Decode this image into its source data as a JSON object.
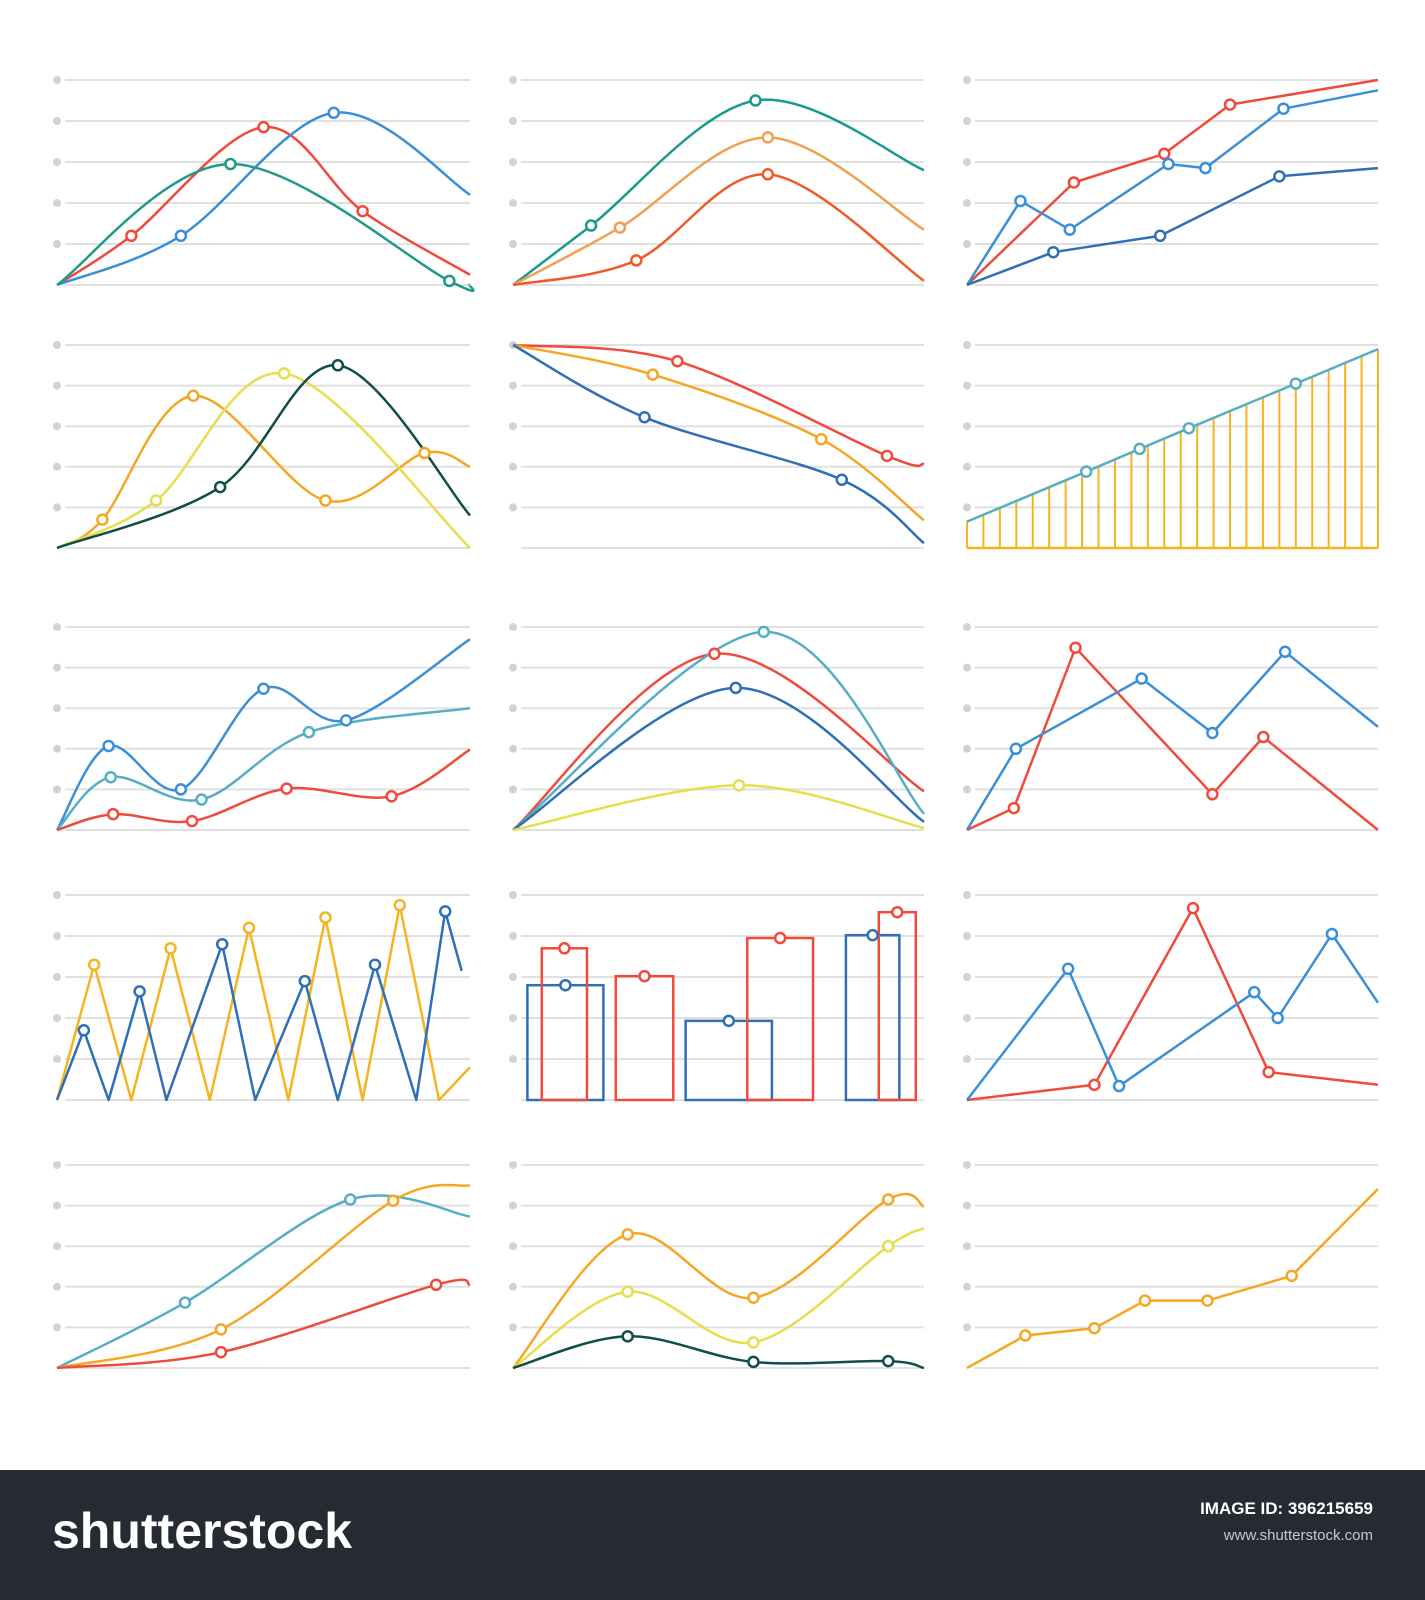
{
  "chart_data": [
    {
      "type": "line",
      "smooth": true,
      "xlim": [
        0,
        10
      ],
      "ylim": [
        0,
        5
      ],
      "yticks": [
        0,
        1,
        2,
        3,
        4,
        5
      ],
      "grid": true,
      "series": [
        {
          "color": "#f04a3a",
          "x": [
            0,
            1.8,
            5,
            7.4,
            10
          ],
          "values": [
            0,
            1.2,
            3.85,
            1.8,
            0.25
          ]
        },
        {
          "color": "#3a8fd6",
          "x": [
            0,
            3,
            6.7,
            10
          ],
          "values": [
            0,
            1.2,
            4.2,
            2.2
          ]
        },
        {
          "color": "#1f9a8a",
          "x": [
            0,
            4.2,
            9.5,
            10
          ],
          "values": [
            0,
            2.95,
            0.1,
            0
          ]
        }
      ]
    },
    {
      "type": "line",
      "smooth": true,
      "xlim": [
        0,
        10
      ],
      "ylim": [
        0,
        5
      ],
      "yticks": [
        0,
        1,
        2,
        3,
        4,
        5
      ],
      "grid": true,
      "series": [
        {
          "color": "#1a9a8e",
          "x": [
            0,
            1.9,
            5.9,
            10
          ],
          "values": [
            0,
            1.45,
            4.5,
            2.8
          ]
        },
        {
          "color": "#f0a050",
          "x": [
            0,
            2.6,
            6.2,
            10
          ],
          "values": [
            0,
            1.4,
            3.6,
            1.35
          ]
        },
        {
          "color": "#f05a28",
          "x": [
            0,
            3,
            6.2,
            10
          ],
          "values": [
            0,
            0.6,
            2.7,
            0.1
          ]
        }
      ]
    },
    {
      "type": "line",
      "smooth": false,
      "xlim": [
        0,
        10
      ],
      "ylim": [
        0,
        5
      ],
      "yticks": [
        0,
        1,
        2,
        3,
        4,
        5
      ],
      "grid": true,
      "series": [
        {
          "color": "#f04a3a",
          "x": [
            0,
            2.6,
            4.8,
            6.4,
            10
          ],
          "values": [
            0,
            2.5,
            3.2,
            4.4,
            5
          ]
        },
        {
          "color": "#3a8fd6",
          "x": [
            0,
            1.3,
            2.5,
            4.9,
            5.8,
            7.7,
            10
          ],
          "values": [
            0,
            2.05,
            1.35,
            2.95,
            2.85,
            4.3,
            4.75
          ]
        },
        {
          "color": "#2f6fb5",
          "x": [
            0,
            2.1,
            4.7,
            7.6,
            10
          ],
          "values": [
            0,
            0.8,
            1.2,
            2.65,
            2.85
          ]
        }
      ]
    },
    {
      "type": "line",
      "smooth": true,
      "xlim": [
        0,
        10
      ],
      "ylim": [
        0,
        5
      ],
      "yticks": [
        0,
        1,
        2,
        3,
        4,
        5
      ],
      "grid": true,
      "series": [
        {
          "color": "#f5a623",
          "x": [
            0,
            1.1,
            3.3,
            6.5,
            8.9,
            10
          ],
          "values": [
            0,
            0.7,
            3.75,
            1.17,
            2.34,
            2
          ]
        },
        {
          "color": "#e8dd4a",
          "x": [
            0,
            2.4,
            5.5,
            10
          ],
          "values": [
            0,
            1.17,
            4.3,
            0
          ]
        },
        {
          "color": "#114d4a",
          "x": [
            0,
            3.95,
            6.8,
            10
          ],
          "values": [
            0,
            1.5,
            4.5,
            0.8
          ]
        }
      ]
    },
    {
      "type": "line",
      "smooth": true,
      "xlim": [
        0,
        10
      ],
      "ylim": [
        0,
        5
      ],
      "yticks": [
        0,
        1,
        2,
        3,
        4,
        5
      ],
      "grid": true,
      "series": [
        {
          "color": "#f04a3a",
          "x": [
            0,
            4,
            9.1,
            10
          ],
          "values": [
            5,
            4.6,
            2.27,
            2.07
          ]
        },
        {
          "color": "#f5a623",
          "x": [
            0,
            3.4,
            7.5,
            10
          ],
          "values": [
            5,
            4.27,
            2.68,
            0.68
          ]
        },
        {
          "color": "#2f6fb5",
          "x": [
            0,
            3.2,
            8,
            10
          ],
          "values": [
            5,
            3.22,
            1.68,
            0.12
          ]
        }
      ]
    },
    {
      "type": "stem",
      "smooth": false,
      "xlim": [
        0,
        10
      ],
      "ylim": [
        0,
        5
      ],
      "yticks": [
        0,
        1,
        2,
        3,
        4,
        5
      ],
      "grid": true,
      "series": [
        {
          "type": "stem",
          "color": "#f5b320",
          "x": [
            0,
            0.4,
            0.8,
            1.2,
            1.6,
            2,
            2.4,
            2.8,
            3.2,
            3.6,
            4,
            4.4,
            4.8,
            5.2,
            5.6,
            6,
            6.4,
            6.8,
            7.2,
            7.6,
            8,
            8.4,
            8.8,
            9.2,
            9.6,
            10
          ],
          "values": [
            0.65,
            0.82,
            0.99,
            1.16,
            1.33,
            1.5,
            1.67,
            1.84,
            2.01,
            2.18,
            2.35,
            2.52,
            2.69,
            2.86,
            3.03,
            3.2,
            3.37,
            3.54,
            3.71,
            3.88,
            4.05,
            4.22,
            4.39,
            4.56,
            4.73,
            4.9
          ]
        },
        {
          "color": "#56aec4",
          "x": [
            0,
            2.9,
            4.2,
            5.4,
            8,
            10
          ],
          "values": [
            0.65,
            1.88,
            2.44,
            2.95,
            4.05,
            4.9
          ]
        }
      ]
    },
    {
      "type": "line",
      "smooth": true,
      "xlim": [
        0,
        10
      ],
      "ylim": [
        0,
        5
      ],
      "yticks": [
        0,
        1,
        2,
        3,
        4,
        5
      ],
      "grid": true,
      "series": [
        {
          "color": "#3a8fd6",
          "x": [
            0,
            1.25,
            3,
            5,
            7,
            10
          ],
          "values": [
            0,
            2.07,
            1,
            3.48,
            2.7,
            4.7
          ]
        },
        {
          "color": "#56aec4",
          "x": [
            0,
            1.3,
            3.5,
            6.1,
            10
          ],
          "values": [
            0,
            1.3,
            0.75,
            2.41,
            3
          ]
        },
        {
          "color": "#f04a3a",
          "x": [
            0,
            1.36,
            3.27,
            5.56,
            8.1,
            10
          ],
          "values": [
            0,
            0.39,
            0.22,
            1.02,
            0.83,
            1.98
          ]
        }
      ]
    },
    {
      "type": "line",
      "smooth": true,
      "xlim": [
        0,
        10
      ],
      "ylim": [
        0,
        5
      ],
      "yticks": [
        0,
        1,
        2,
        3,
        4,
        5
      ],
      "grid": true,
      "series": [
        {
          "color": "#f04a3a",
          "x": [
            0,
            4.9,
            10
          ],
          "values": [
            0,
            4.34,
            0.95
          ]
        },
        {
          "color": "#56aec4",
          "x": [
            0,
            6.1,
            10
          ],
          "values": [
            0,
            4.88,
            0.4
          ]
        },
        {
          "color": "#2f6fb5",
          "x": [
            0,
            5.42,
            10
          ],
          "values": [
            0,
            3.5,
            0.2
          ]
        },
        {
          "color": "#e8dd4a",
          "x": [
            0,
            5.5,
            10
          ],
          "values": [
            0,
            1.1,
            0.05
          ]
        }
      ]
    },
    {
      "type": "line",
      "smooth": false,
      "xlim": [
        0,
        10
      ],
      "ylim": [
        0,
        5
      ],
      "yticks": [
        0,
        1,
        2,
        3,
        4,
        5
      ],
      "grid": true,
      "series": [
        {
          "color": "#f04a3a",
          "x": [
            0,
            1.14,
            2.64,
            5.97,
            7.21,
            10
          ],
          "values": [
            0,
            0.54,
            4.49,
            0.88,
            2.29,
            0
          ]
        },
        {
          "color": "#3a8fd6",
          "x": [
            0,
            1.19,
            4.25,
            5.97,
            7.74,
            10
          ],
          "values": [
            0,
            2,
            3.73,
            2.39,
            4.39,
            2.54
          ]
        }
      ]
    },
    {
      "type": "line",
      "smooth": false,
      "xlim": [
        0,
        10
      ],
      "ylim": [
        0,
        5
      ],
      "yticks": [
        0,
        1,
        2,
        3,
        4,
        5
      ],
      "grid": true,
      "series": [
        {
          "color": "#f5b320",
          "x": [
            0,
            0.9,
            1.8,
            2.75,
            3.7,
            4.65,
            5.6,
            6.5,
            7.4,
            8.3,
            9.25,
            10
          ],
          "values": [
            0,
            3.3,
            0,
            3.7,
            0,
            4.2,
            0,
            4.45,
            0,
            4.75,
            0,
            0.8
          ]
        },
        {
          "color": "#2f6fb5",
          "x": [
            0,
            0.65,
            1.25,
            2,
            2.65,
            4,
            4.8,
            6,
            6.8,
            7.7,
            8.7,
            9.4,
            9.8
          ],
          "values": [
            0,
            1.7,
            0,
            2.65,
            0,
            3.8,
            0,
            2.9,
            0,
            3.3,
            0,
            4.6,
            3.15
          ]
        }
      ]
    },
    {
      "type": "bar",
      "smooth": false,
      "xlim": [
        0,
        10
      ],
      "ylim": [
        0,
        5
      ],
      "yticks": [
        0,
        1,
        2,
        3,
        4,
        5
      ],
      "grid": true,
      "series": [
        {
          "color": "#2f6fb5",
          "x": [
            [
              0.35,
              2.2
            ],
            [
              4.2,
              6.3
            ],
            [
              8.1,
              9.4
            ]
          ],
          "values": [
            2.8,
            1.93,
            4.02
          ]
        },
        {
          "color": "#f04a3a",
          "x": [
            [
              0.7,
              1.8
            ],
            [
              2.5,
              3.9
            ],
            [
              5.7,
              7.3
            ],
            [
              8.9,
              9.8
            ]
          ],
          "values": [
            3.7,
            3.02,
            3.95,
            4.58
          ]
        }
      ]
    },
    {
      "type": "line",
      "smooth": false,
      "xlim": [
        0,
        10
      ],
      "ylim": [
        0,
        5
      ],
      "yticks": [
        0,
        1,
        2,
        3,
        4,
        5
      ],
      "grid": true,
      "series": [
        {
          "color": "#f04a3a",
          "x": [
            0,
            3.1,
            5.5,
            7.34,
            10
          ],
          "values": [
            0,
            0.37,
            4.68,
            0.68,
            0.37
          ]
        },
        {
          "color": "#3a8fd6",
          "x": [
            0,
            2.46,
            3.7,
            6.99,
            7.56,
            8.88,
            10
          ],
          "values": [
            0,
            3.2,
            0.34,
            2.63,
            2,
            4.05,
            2.37
          ]
        }
      ]
    },
    {
      "type": "line",
      "smooth": true,
      "xlim": [
        0,
        10
      ],
      "ylim": [
        0,
        5
      ],
      "yticks": [
        0,
        1,
        2,
        3,
        4,
        5
      ],
      "grid": true,
      "series": [
        {
          "color": "#56aec4",
          "x": [
            0,
            3.1,
            7.1,
            10
          ],
          "values": [
            0,
            1.61,
            4.15,
            3.73
          ]
        },
        {
          "color": "#f5a623",
          "x": [
            0,
            3.97,
            8.14,
            10
          ],
          "values": [
            0,
            0.95,
            4.12,
            4.5
          ]
        },
        {
          "color": "#f04a3a",
          "x": [
            0,
            3.97,
            9.18,
            10
          ],
          "values": [
            0,
            0.39,
            2.05,
            2.05
          ]
        }
      ]
    },
    {
      "type": "line",
      "smooth": true,
      "xlim": [
        0,
        10
      ],
      "ylim": [
        0,
        5
      ],
      "yticks": [
        0,
        1,
        2,
        3,
        4,
        5
      ],
      "grid": true,
      "series": [
        {
          "color": "#f5a623",
          "x": [
            0,
            2.79,
            5.85,
            9.13,
            10
          ],
          "values": [
            0,
            3.29,
            1.73,
            4.15,
            3.98
          ]
        },
        {
          "color": "#e8dd4a",
          "x": [
            0,
            2.79,
            5.85,
            9.13,
            10
          ],
          "values": [
            0,
            1.88,
            0.63,
            3,
            3.44
          ]
        },
        {
          "color": "#114d4a",
          "x": [
            0,
            2.79,
            5.85,
            9.13,
            10
          ],
          "values": [
            0,
            0.78,
            0.15,
            0.17,
            0
          ]
        }
      ]
    },
    {
      "type": "line",
      "smooth": false,
      "xlim": [
        0,
        10
      ],
      "ylim": [
        0,
        5
      ],
      "yticks": [
        0,
        1,
        2,
        3,
        4,
        5
      ],
      "grid": true,
      "series": [
        {
          "color": "#f5a623",
          "x": [
            0,
            1.42,
            3.1,
            4.33,
            5.85,
            7.9,
            10
          ],
          "values": [
            0,
            0.8,
            0.98,
            1.66,
            1.66,
            2.27,
            4.41
          ]
        }
      ]
    }
  ],
  "footer": {
    "logo": "shutterstock",
    "image_id": "IMAGE ID: 396215659",
    "url": "www.shutterstock.com"
  }
}
